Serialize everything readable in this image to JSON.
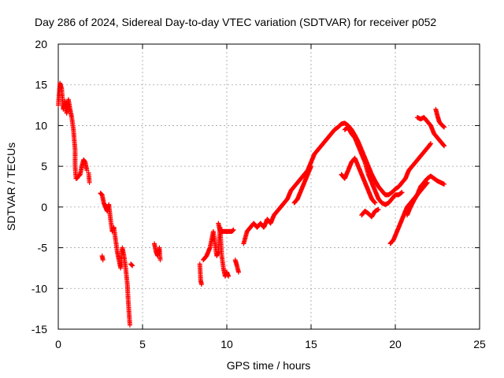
{
  "chart_data": {
    "type": "scatter",
    "title": "Day 286 of 2024, Sidereal Day-to-day VTEC variation (SDTVAR) for receiver p052",
    "xlabel": "GPS time / hours",
    "ylabel": "SDTVAR / TECUs",
    "xlim": [
      0,
      25
    ],
    "ylim": [
      -15,
      20
    ],
    "xticks": [
      0,
      5,
      10,
      15,
      20,
      25
    ],
    "yticks": [
      -15,
      -10,
      -5,
      0,
      5,
      10,
      15,
      20
    ],
    "xtick_labels": [
      "0",
      "5",
      "10",
      "15",
      "20",
      "25"
    ],
    "ytick_labels": [
      "-15",
      "-10",
      "-5",
      "0",
      "5",
      "10",
      "15",
      "20"
    ],
    "grid": true,
    "marker": "plus",
    "color": "#ff0000",
    "series": [
      {
        "name": "SDTVAR",
        "segments": [
          [
            [
              0.0,
              12.5
            ],
            [
              0.1,
              15.2
            ],
            [
              0.2,
              14.5
            ],
            [
              0.3,
              12.0
            ],
            [
              0.4,
              13.0
            ],
            [
              0.5,
              11.5
            ],
            [
              0.6,
              13.2
            ],
            [
              0.7,
              12.0
            ],
            [
              0.8,
              11.0
            ],
            [
              0.9,
              9.5
            ],
            [
              1.0,
              7.0
            ],
            [
              1.0,
              5.0
            ],
            [
              1.05,
              3.5
            ]
          ],
          [
            [
              1.1,
              3.5
            ],
            [
              1.2,
              3.8
            ],
            [
              1.3,
              4.0
            ],
            [
              1.4,
              5.0
            ],
            [
              1.5,
              5.8
            ],
            [
              1.6,
              5.5
            ],
            [
              1.7,
              4.5
            ]
          ],
          [
            [
              1.8,
              4.2
            ],
            [
              1.85,
              3.0
            ]
          ],
          [
            [
              2.5,
              1.7
            ],
            [
              2.6,
              1.5
            ],
            [
              2.7,
              0.5
            ],
            [
              2.8,
              0.0
            ],
            [
              2.9,
              -0.5
            ],
            [
              3.0,
              0.3
            ],
            [
              3.1,
              -1.5
            ],
            [
              3.2,
              -3.0
            ],
            [
              3.3,
              -2.5
            ],
            [
              3.4,
              -4.0
            ],
            [
              3.5,
              -5.5
            ],
            [
              3.6,
              -6.5
            ],
            [
              3.7,
              -7.5
            ],
            [
              3.8,
              -5.0
            ],
            [
              3.9,
              -6.0
            ],
            [
              4.0,
              -7.5
            ],
            [
              4.1,
              -9.5
            ],
            [
              4.15,
              -11.5
            ],
            [
              4.2,
              -13.0
            ],
            [
              4.25,
              -14.5
            ]
          ],
          [
            [
              2.6,
              -6.0
            ],
            [
              2.65,
              -6.5
            ]
          ],
          [
            [
              4.3,
              -7.0
            ],
            [
              4.4,
              -7.2
            ]
          ],
          [
            [
              5.7,
              -4.5
            ],
            [
              5.8,
              -5.5
            ],
            [
              5.9,
              -6.0
            ],
            [
              6.0,
              -5.0
            ],
            [
              6.05,
              -6.5
            ]
          ],
          [
            [
              8.4,
              -7.0
            ],
            [
              8.45,
              -9.0
            ],
            [
              8.5,
              -9.5
            ]
          ],
          [
            [
              8.6,
              -6.5
            ],
            [
              8.8,
              -6.0
            ],
            [
              9.0,
              -5.0
            ],
            [
              9.2,
              -3.0
            ],
            [
              9.3,
              -4.5
            ],
            [
              9.4,
              -6.0
            ],
            [
              9.5,
              -5.5
            ],
            [
              9.6,
              -2.5
            ],
            [
              9.7,
              -6.0
            ],
            [
              9.8,
              -7.5
            ],
            [
              9.9,
              -8.5
            ],
            [
              10.0,
              -8.0
            ],
            [
              10.1,
              -8.5
            ]
          ],
          [
            [
              9.5,
              -2.0
            ],
            [
              9.6,
              -3.0
            ],
            [
              10.3,
              -3.0
            ],
            [
              10.4,
              -2.8
            ]
          ],
          [
            [
              10.5,
              -6.5
            ],
            [
              10.6,
              -7.2
            ],
            [
              10.7,
              -8.0
            ]
          ],
          [
            [
              11.0,
              -4.5
            ],
            [
              11.2,
              -3.0
            ],
            [
              11.4,
              -2.5
            ],
            [
              11.6,
              -2.0
            ],
            [
              11.8,
              -2.5
            ],
            [
              12.0,
              -2.0
            ],
            [
              12.2,
              -2.5
            ],
            [
              12.4,
              -1.5
            ],
            [
              12.6,
              -2.0
            ],
            [
              12.8,
              -1.0
            ],
            [
              13.0,
              -0.5
            ],
            [
              13.2,
              0.0
            ],
            [
              13.4,
              0.5
            ],
            [
              13.6,
              1.0
            ],
            [
              13.8,
              2.0
            ],
            [
              14.0,
              2.5
            ],
            [
              14.2,
              3.0
            ],
            [
              14.4,
              3.5
            ],
            [
              14.6,
              4.0
            ],
            [
              14.8,
              4.5
            ],
            [
              15.0,
              5.5
            ],
            [
              15.2,
              6.5
            ],
            [
              15.4,
              7.0
            ],
            [
              15.6,
              7.5
            ],
            [
              15.8,
              8.0
            ],
            [
              16.0,
              8.5
            ],
            [
              16.2,
              9.0
            ],
            [
              16.4,
              9.5
            ],
            [
              16.6,
              9.8
            ],
            [
              16.8,
              10.2
            ],
            [
              17.0,
              10.3
            ],
            [
              17.2,
              10.0
            ],
            [
              17.4,
              9.5
            ],
            [
              17.6,
              8.8
            ],
            [
              17.8,
              8.0
            ],
            [
              18.0,
              7.0
            ],
            [
              18.2,
              6.0
            ],
            [
              18.4,
              5.0
            ],
            [
              18.6,
              4.0
            ],
            [
              18.8,
              3.2
            ],
            [
              19.0,
              2.5
            ],
            [
              19.2,
              2.0
            ],
            [
              19.4,
              1.5
            ],
            [
              19.6,
              1.5
            ],
            [
              19.8,
              1.8
            ],
            [
              20.0,
              2.2
            ],
            [
              20.2,
              2.5
            ],
            [
              20.4,
              3.0
            ],
            [
              20.6,
              3.5
            ],
            [
              20.8,
              4.5
            ],
            [
              21.0,
              5.0
            ],
            [
              21.2,
              5.5
            ],
            [
              21.4,
              6.0
            ],
            [
              21.6,
              6.5
            ],
            [
              21.8,
              7.0
            ],
            [
              22.0,
              7.5
            ],
            [
              22.1,
              7.8
            ]
          ],
          [
            [
              14.0,
              0.5
            ],
            [
              14.2,
              1.0
            ],
            [
              14.4,
              2.0
            ],
            [
              14.6,
              3.0
            ],
            [
              14.8,
              4.0
            ],
            [
              15.0,
              5.0
            ]
          ],
          [
            [
              17.0,
              9.5
            ],
            [
              17.2,
              9.8
            ],
            [
              17.4,
              9.0
            ],
            [
              17.6,
              8.5
            ],
            [
              17.8,
              7.5
            ],
            [
              18.0,
              6.5
            ],
            [
              18.2,
              5.5
            ],
            [
              18.4,
              4.0
            ],
            [
              18.6,
              3.0
            ],
            [
              18.8,
              2.0
            ],
            [
              19.0,
              1.0
            ],
            [
              19.2,
              0.5
            ],
            [
              19.4,
              0.3
            ],
            [
              19.6,
              0.5
            ],
            [
              19.8,
              1.0
            ],
            [
              20.0,
              1.5
            ],
            [
              20.2,
              1.5
            ],
            [
              20.4,
              1.8
            ]
          ],
          [
            [
              16.8,
              4.0
            ],
            [
              17.0,
              3.5
            ],
            [
              17.2,
              4.5
            ],
            [
              17.4,
              5.5
            ],
            [
              17.6,
              6.0
            ],
            [
              17.8,
              5.0
            ],
            [
              18.0,
              4.0
            ],
            [
              18.2,
              3.0
            ],
            [
              18.4,
              2.0
            ],
            [
              18.6,
              1.0
            ],
            [
              18.8,
              0.5
            ]
          ],
          [
            [
              18.0,
              -1.0
            ],
            [
              18.2,
              -0.5
            ],
            [
              18.4,
              -0.8
            ],
            [
              18.6,
              -1.2
            ],
            [
              18.8,
              -0.5
            ],
            [
              19.0,
              -0.3
            ]
          ],
          [
            [
              19.7,
              -4.5
            ],
            [
              19.9,
              -4.0
            ],
            [
              20.1,
              -3.0
            ],
            [
              20.3,
              -2.0
            ],
            [
              20.5,
              -1.0
            ],
            [
              20.7,
              0.0
            ],
            [
              20.9,
              0.5
            ],
            [
              21.1,
              1.0
            ],
            [
              21.3,
              1.5
            ],
            [
              21.5,
              2.0
            ],
            [
              21.7,
              2.5
            ],
            [
              21.9,
              3.0
            ]
          ],
          [
            [
              20.7,
              -1.0
            ],
            [
              20.9,
              0.0
            ],
            [
              21.1,
              0.8
            ],
            [
              21.3,
              1.5
            ],
            [
              21.5,
              2.5
            ],
            [
              21.7,
              3.0
            ],
            [
              21.9,
              3.5
            ],
            [
              22.1,
              3.8
            ],
            [
              22.3,
              3.5
            ],
            [
              22.5,
              3.2
            ],
            [
              22.7,
              3.0
            ],
            [
              22.9,
              2.8
            ]
          ],
          [
            [
              21.3,
              11.0
            ],
            [
              21.5,
              10.8
            ],
            [
              21.7,
              11.0
            ],
            [
              21.9,
              10.5
            ],
            [
              22.1,
              10.0
            ],
            [
              22.3,
              9.0
            ],
            [
              22.5,
              8.5
            ],
            [
              22.7,
              8.0
            ],
            [
              22.9,
              7.5
            ]
          ],
          [
            [
              22.4,
              12.0
            ],
            [
              22.5,
              11.2
            ],
            [
              22.6,
              10.5
            ],
            [
              22.7,
              10.2
            ],
            [
              22.8,
              10.0
            ],
            [
              22.9,
              9.8
            ]
          ]
        ]
      }
    ]
  }
}
